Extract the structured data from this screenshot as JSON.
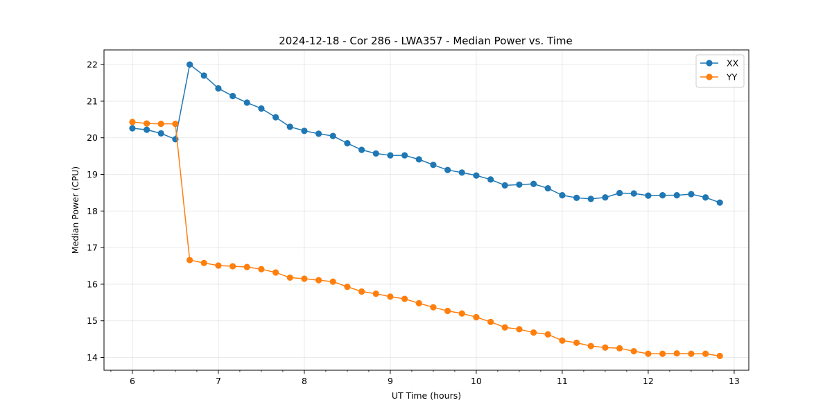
{
  "chart_data": {
    "type": "line",
    "title": "2024-12-18 - Cor 286 - LWA357 - Median Power vs. Time",
    "xlabel": "UT Time (hours)",
    "ylabel": "Median Power (CPU)",
    "xlim": [
      5.67,
      13.17
    ],
    "ylim": [
      13.65,
      22.4
    ],
    "xticks": [
      "6",
      "7",
      "8",
      "9",
      "10",
      "11",
      "12",
      "13"
    ],
    "yticks": [
      "14",
      "15",
      "16",
      "17",
      "18",
      "19",
      "20",
      "21",
      "22"
    ],
    "grid": true,
    "legend_position": "top-right",
    "x": [
      6.0,
      6.167,
      6.333,
      6.5,
      6.667,
      6.833,
      7.0,
      7.167,
      7.333,
      7.5,
      7.667,
      7.833,
      8.0,
      8.167,
      8.333,
      8.5,
      8.667,
      8.833,
      9.0,
      9.167,
      9.333,
      9.5,
      9.667,
      9.833,
      10.0,
      10.167,
      10.333,
      10.5,
      10.667,
      10.833,
      11.0,
      11.167,
      11.333,
      11.5,
      11.667,
      11.833,
      12.0,
      12.167,
      12.333,
      12.5,
      12.667,
      12.833
    ],
    "series": [
      {
        "name": "XX",
        "color": "#1f77b4",
        "values": [
          20.26,
          20.22,
          20.12,
          19.96,
          22.0,
          21.7,
          21.35,
          21.14,
          20.96,
          20.8,
          20.56,
          20.3,
          20.19,
          20.11,
          20.05,
          19.85,
          19.67,
          19.57,
          19.52,
          19.52,
          19.41,
          19.26,
          19.12,
          19.05,
          18.97,
          18.86,
          18.7,
          18.72,
          18.74,
          18.62,
          18.43,
          18.36,
          18.33,
          18.37,
          18.49,
          18.48,
          18.42,
          18.43,
          18.43,
          18.46,
          18.37,
          18.23
        ]
      },
      {
        "name": "YY",
        "color": "#ff7f0e",
        "values": [
          20.43,
          20.39,
          20.38,
          20.38,
          16.66,
          16.58,
          16.51,
          16.49,
          16.47,
          16.41,
          16.32,
          16.18,
          16.15,
          16.11,
          16.07,
          15.93,
          15.8,
          15.74,
          15.66,
          15.6,
          15.48,
          15.37,
          15.27,
          15.2,
          15.1,
          14.97,
          14.82,
          14.77,
          14.68,
          14.63,
          14.46,
          14.4,
          14.31,
          14.27,
          14.25,
          14.17,
          14.1,
          14.1,
          14.11,
          14.1,
          14.1,
          14.04
        ]
      }
    ]
  }
}
